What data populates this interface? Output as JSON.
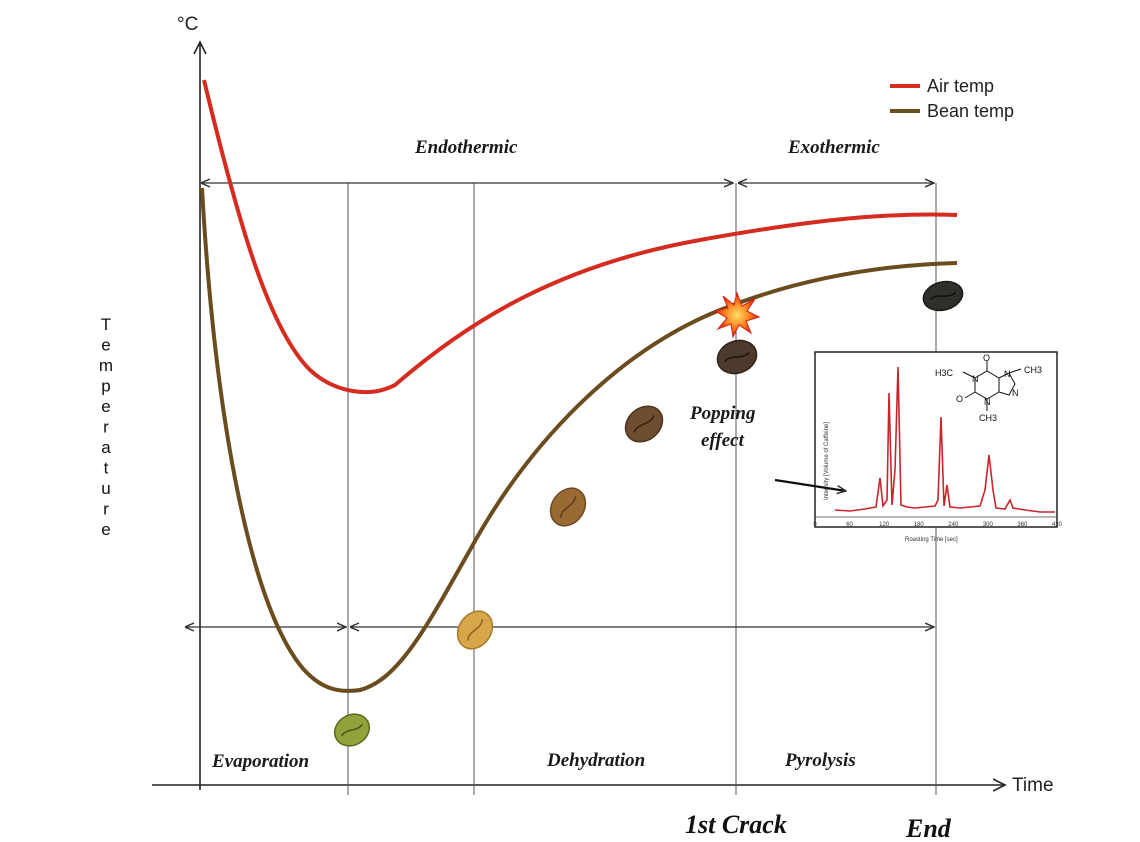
{
  "axes": {
    "y_unit": "°C",
    "x_label": "Time",
    "y_label": "Temperature"
  },
  "legend": [
    {
      "label": "Air temp",
      "color": "#d62b1f"
    },
    {
      "label": "Bean temp",
      "color": "#6b4c1e"
    }
  ],
  "regions_top": {
    "endothermic": "Endothermic",
    "exothermic": "Exothermic"
  },
  "phases": {
    "evaporation": "Evaporation",
    "dehydration": "Dehydration",
    "pyrolysis": "Pyrolysis"
  },
  "milestones": {
    "first_crack": "1st Crack",
    "end": "End"
  },
  "annotation": {
    "line1": "Popping",
    "line2": "effect"
  },
  "inset": {
    "x_label": "Roasting Time [sec]",
    "y_label": "Intensity [Volume of Caffeine]",
    "x_ticks": [
      "0",
      "60",
      "120",
      "180",
      "240",
      "300",
      "360",
      "420"
    ],
    "chem_labels": {
      "o_top": "O",
      "o_left": "O",
      "ch3_left": "H3C",
      "ch3_right": "CH3",
      "ch3_bottom": "CH3",
      "n1": "N",
      "n2": "N",
      "n3": "N",
      "n4": "N"
    }
  },
  "colors": {
    "air": "#d62b1f",
    "bean": "#6b4c1e",
    "axis": "#222222",
    "guide": "#555555"
  }
}
